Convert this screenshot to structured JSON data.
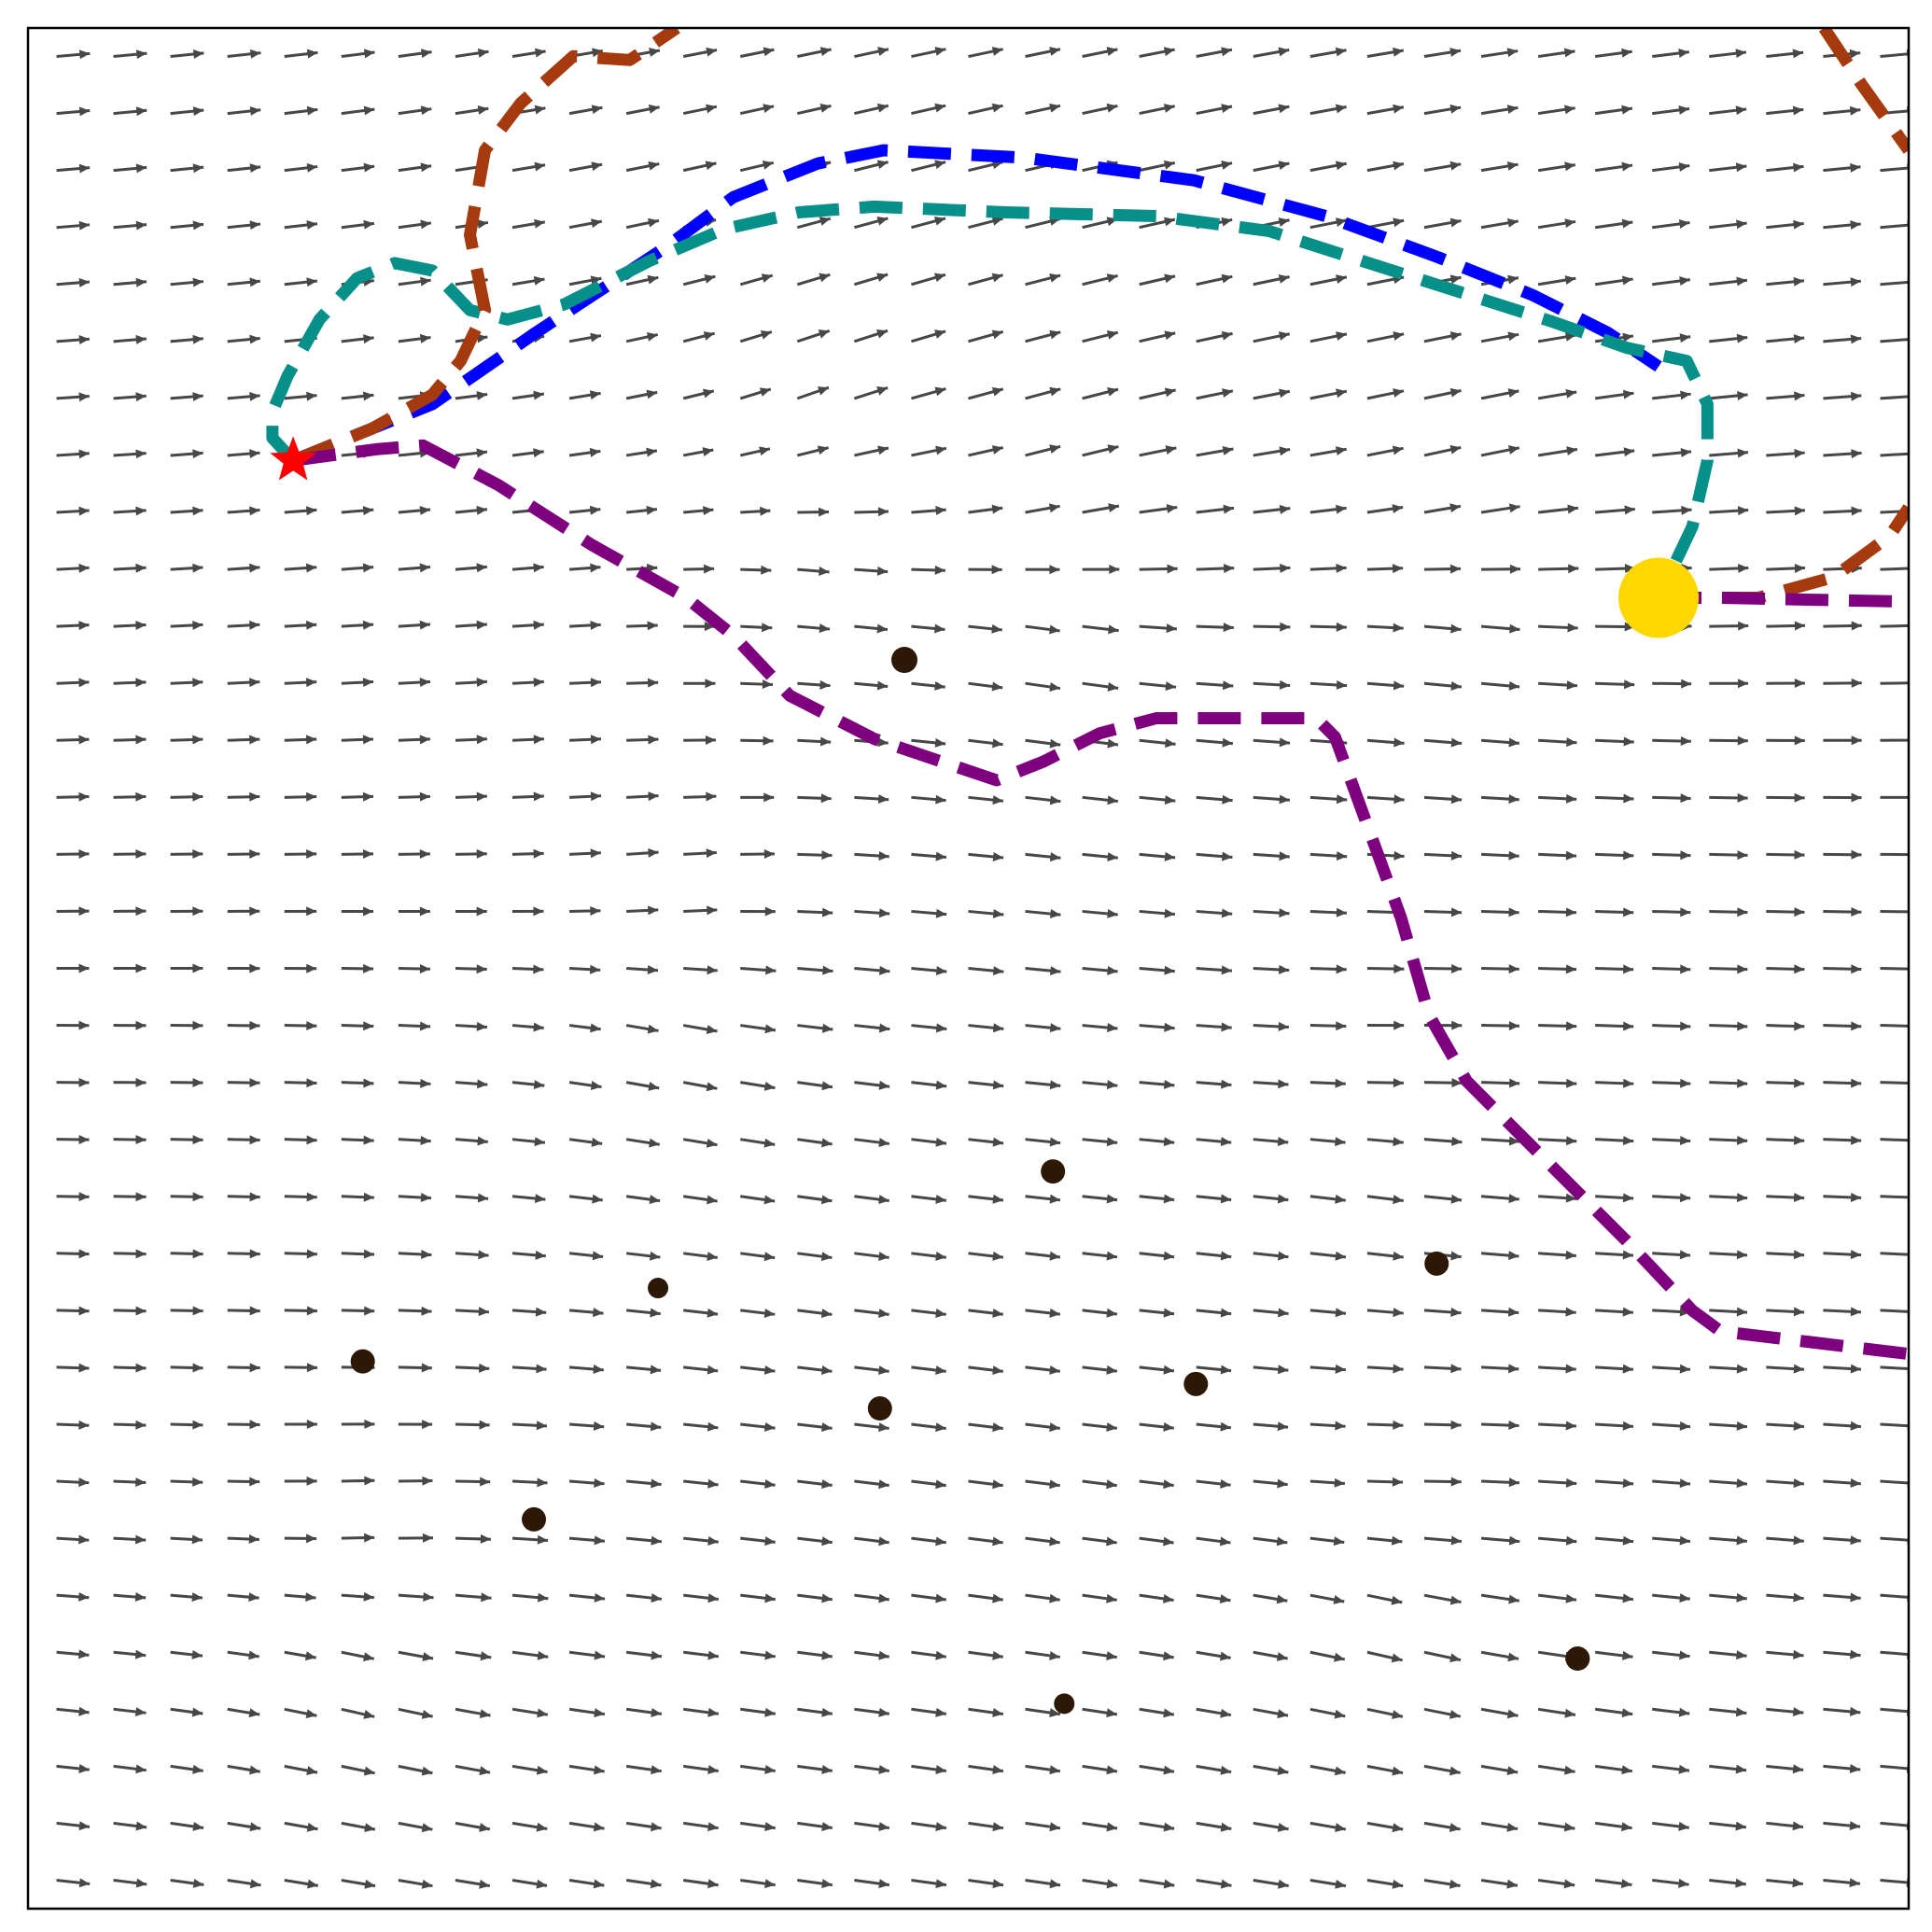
{
  "chart_data": {
    "type": "vector-field-with-trajectories",
    "title": "",
    "xlabel": "",
    "ylabel": "",
    "xlim": [
      0,
      1
    ],
    "ylim": [
      0,
      1
    ],
    "grid": false,
    "legend": "none",
    "axes_ticks": "none",
    "field": {
      "color": "#474747",
      "rows": 33,
      "cols": 33,
      "sources": [
        {
          "x": 0.42,
          "y": 0.76,
          "s": 0.004
        },
        {
          "x": 0.55,
          "y": 0.72,
          "s": 0.004
        },
        {
          "x": 0.76,
          "y": 0.72,
          "s": 0.004
        },
        {
          "x": 0.34,
          "y": 0.5,
          "s": 0.003
        },
        {
          "x": 0.18,
          "y": 0.16,
          "s": 0.003
        },
        {
          "x": 0.72,
          "y": 0.42,
          "s": 0.002
        },
        {
          "x": 0.73,
          "y": 0.19,
          "s": 0.003
        }
      ]
    },
    "obstacles": {
      "color": "#2d1806",
      "points": [
        {
          "x": 0.466,
          "y": 0.664,
          "r": 14
        },
        {
          "x": 0.545,
          "y": 0.392,
          "r": 13
        },
        {
          "x": 0.335,
          "y": 0.33,
          "r": 11
        },
        {
          "x": 0.749,
          "y": 0.343,
          "r": 13
        },
        {
          "x": 0.178,
          "y": 0.291,
          "r": 13
        },
        {
          "x": 0.453,
          "y": 0.266,
          "r": 13
        },
        {
          "x": 0.621,
          "y": 0.279,
          "r": 13
        },
        {
          "x": 0.269,
          "y": 0.207,
          "r": 13
        },
        {
          "x": 0.824,
          "y": 0.133,
          "r": 13
        },
        {
          "x": 0.551,
          "y": 0.109,
          "r": 11
        }
      ]
    },
    "start": {
      "x": 0.141,
      "y": 0.77,
      "color": "#ff0000",
      "marker": "star"
    },
    "goal": {
      "x": 0.867,
      "y": 0.697,
      "color": "#ffd700",
      "marker": "circle"
    },
    "series": [
      {
        "color": "#0000ff",
        "points": [
          [
            0.141,
            0.77
          ],
          [
            0.215,
            0.8
          ],
          [
            0.27,
            0.838
          ],
          [
            0.34,
            0.884
          ],
          [
            0.375,
            0.91
          ],
          [
            0.42,
            0.928
          ],
          [
            0.455,
            0.935
          ],
          [
            0.53,
            0.931
          ],
          [
            0.62,
            0.919
          ],
          [
            0.69,
            0.9
          ],
          [
            0.75,
            0.878
          ],
          [
            0.8,
            0.858
          ],
          [
            0.84,
            0.838
          ],
          [
            0.867,
            0.82
          ]
        ]
      },
      {
        "color": "#078f89",
        "points": [
          [
            0.141,
            0.77
          ],
          [
            0.13,
            0.782
          ],
          [
            0.13,
            0.796
          ],
          [
            0.138,
            0.815
          ],
          [
            0.155,
            0.845
          ],
          [
            0.175,
            0.867
          ],
          [
            0.195,
            0.875
          ],
          [
            0.215,
            0.871
          ],
          [
            0.235,
            0.85
          ],
          [
            0.255,
            0.845
          ],
          [
            0.285,
            0.853
          ],
          [
            0.33,
            0.876
          ],
          [
            0.37,
            0.893
          ],
          [
            0.41,
            0.902
          ],
          [
            0.45,
            0.905
          ],
          [
            0.52,
            0.902
          ],
          [
            0.6,
            0.9
          ],
          [
            0.66,
            0.892
          ],
          [
            0.71,
            0.876
          ],
          [
            0.76,
            0.86
          ],
          [
            0.81,
            0.844
          ],
          [
            0.85,
            0.83
          ],
          [
            0.882,
            0.823
          ],
          [
            0.893,
            0.8
          ],
          [
            0.893,
            0.77
          ],
          [
            0.885,
            0.735
          ],
          [
            0.867,
            0.697
          ]
        ]
      },
      {
        "color": "#a43a0d",
        "points": [
          [
            0.141,
            0.77
          ],
          [
            0.183,
            0.787
          ],
          [
            0.215,
            0.805
          ],
          [
            0.23,
            0.823
          ],
          [
            0.243,
            0.85
          ],
          [
            0.235,
            0.89
          ],
          [
            0.243,
            0.935
          ],
          [
            0.262,
            0.96
          ],
          [
            0.29,
            0.985
          ],
          [
            0.32,
            0.983
          ],
          [
            0.345,
            1.0
          ]
        ]
      },
      {
        "color": "#a43a0d",
        "points": [
          [
            0.867,
            0.697
          ],
          [
            0.92,
            0.697
          ],
          [
            0.96,
            0.708
          ],
          [
            0.99,
            0.73
          ],
          [
            1.0,
            0.745
          ]
        ]
      },
      {
        "color": "#a43a0d",
        "points": [
          [
            0.955,
            1.0
          ],
          [
            0.975,
            0.97
          ],
          [
            1.0,
            0.935
          ]
        ]
      },
      {
        "color": "#7f007f",
        "points": [
          [
            0.141,
            0.77
          ],
          [
            0.185,
            0.776
          ],
          [
            0.21,
            0.778
          ],
          [
            0.25,
            0.757
          ],
          [
            0.3,
            0.725
          ],
          [
            0.35,
            0.697
          ],
          [
            0.375,
            0.677
          ],
          [
            0.405,
            0.645
          ],
          [
            0.45,
            0.622
          ],
          [
            0.515,
            0.6
          ],
          [
            0.54,
            0.61
          ],
          [
            0.57,
            0.625
          ],
          [
            0.6,
            0.633
          ],
          [
            0.64,
            0.633
          ],
          [
            0.685,
            0.633
          ],
          [
            0.695,
            0.623
          ],
          [
            0.71,
            0.582
          ],
          [
            0.73,
            0.527
          ],
          [
            0.745,
            0.475
          ],
          [
            0.765,
            0.44
          ],
          [
            0.8,
            0.405
          ],
          [
            0.85,
            0.355
          ],
          [
            0.885,
            0.318
          ],
          [
            0.9,
            0.307
          ],
          [
            0.95,
            0.301
          ],
          [
            1.0,
            0.295
          ]
        ]
      },
      {
        "color": "#7f007f",
        "points": [
          [
            0.867,
            0.697
          ],
          [
            0.9,
            0.697
          ],
          [
            0.95,
            0.696
          ],
          [
            1.0,
            0.695
          ]
        ]
      }
    ]
  }
}
